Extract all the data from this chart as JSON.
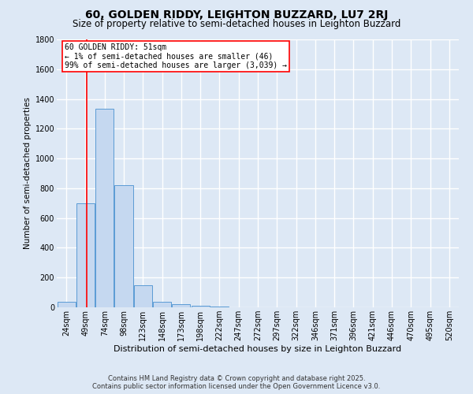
{
  "title": "60, GOLDEN RIDDY, LEIGHTON BUZZARD, LU7 2RJ",
  "subtitle": "Size of property relative to semi-detached houses in Leighton Buzzard",
  "xlabel": "Distribution of semi-detached houses by size in Leighton Buzzard",
  "ylabel": "Number of semi-detached properties",
  "footer1": "Contains HM Land Registry data © Crown copyright and database right 2025.",
  "footer2": "Contains public sector information licensed under the Open Government Licence v3.0.",
  "annotation_line1": "60 GOLDEN RIDDY: 51sqm",
  "annotation_line2": "← 1% of semi-detached houses are smaller (46)",
  "annotation_line3": "99% of semi-detached houses are larger (3,039) →",
  "bar_labels": [
    "24sqm",
    "49sqm",
    "74sqm",
    "98sqm",
    "123sqm",
    "148sqm",
    "173sqm",
    "198sqm",
    "222sqm",
    "247sqm",
    "272sqm",
    "297sqm",
    "322sqm",
    "346sqm",
    "371sqm",
    "396sqm",
    "421sqm",
    "446sqm",
    "470sqm",
    "495sqm",
    "520sqm"
  ],
  "bar_values": [
    35,
    700,
    1335,
    820,
    150,
    35,
    22,
    10,
    5,
    2,
    1,
    0,
    0,
    0,
    0,
    0,
    0,
    0,
    0,
    0,
    0
  ],
  "bar_color": "#c5d8f0",
  "bar_edge_color": "#5b9bd5",
  "red_line_x": 1.08,
  "ylim": [
    0,
    1800
  ],
  "yticks": [
    0,
    200,
    400,
    600,
    800,
    1000,
    1200,
    1400,
    1600,
    1800
  ],
  "bg_color": "#dde8f5",
  "plot_bg_color": "#dde8f5",
  "grid_color": "#ffffff",
  "title_fontsize": 10,
  "subtitle_fontsize": 8.5,
  "tick_fontsize": 7,
  "annotation_fontsize": 7,
  "xlabel_fontsize": 8,
  "ylabel_fontsize": 7.5,
  "footer_fontsize": 6
}
